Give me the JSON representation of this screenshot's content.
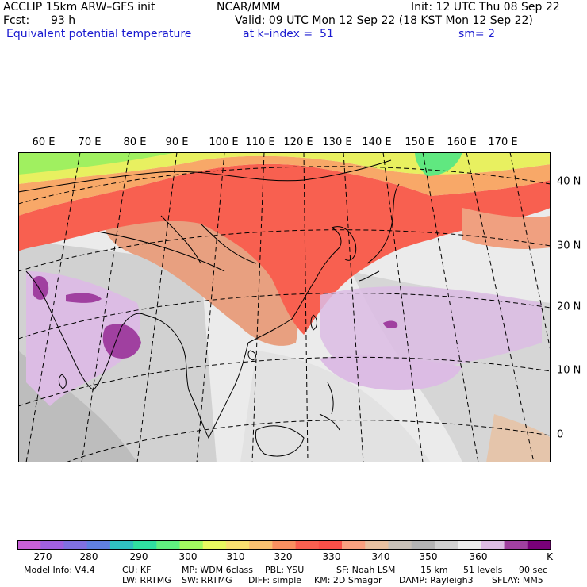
{
  "header": {
    "model": "ACCLIP 15km ARW–GFS init",
    "source": "NCAR/MMM",
    "init": "Init: 12 UTC Thu 08 Sep 22",
    "fcst_label": "Fcst:",
    "fcst_value": "93 h",
    "valid": "Valid: 09 UTC Mon 12 Sep 22 (18 KST Mon 12 Sep 22)",
    "field": "Equivalent potential temperature",
    "level": "at k–index =  51",
    "smoothing": "sm= 2"
  },
  "map": {
    "longitude_labels": [
      "60 E",
      "70 E",
      "80 E",
      "90 E",
      "100 E",
      "110 E",
      "120 E",
      "130 E",
      "140 E",
      "150 E",
      "160 E",
      "170 E"
    ],
    "latitude_labels": [
      "40 N",
      "30 N",
      "20 N",
      "10 N",
      "0"
    ]
  },
  "colorbar": {
    "colors": [
      "#c860d8",
      "#a060e0",
      "#8070e0",
      "#6080e0",
      "#30c0c0",
      "#30e0a0",
      "#60f080",
      "#a0f860",
      "#e8f860",
      "#f8e070",
      "#f8c070",
      "#f89060",
      "#f86050",
      "#f85048",
      "#f8a080",
      "#e8c0a0",
      "#c8c0b8",
      "#b4b4b4",
      "#d0d0d0",
      "#ececec",
      "#dcbce4",
      "#a040a0",
      "#780078"
    ],
    "ticks": [
      "270",
      "280",
      "290",
      "300",
      "310",
      "320",
      "330",
      "340",
      "350",
      "360"
    ],
    "unit": "K"
  },
  "footer": {
    "line1": [
      "Model Info: V4.4",
      "CU: KF",
      "MP: WDM 6class",
      "PBL: YSU",
      "SF: Noah LSM",
      "15 km",
      "51 levels",
      "90 sec"
    ],
    "line2": [
      "LW: RRTMG",
      "SW: RRTMG",
      "DIFF: simple",
      "KM: 2D Smagor",
      "DAMP: Rayleigh3",
      "SFLAY: MM5"
    ]
  }
}
